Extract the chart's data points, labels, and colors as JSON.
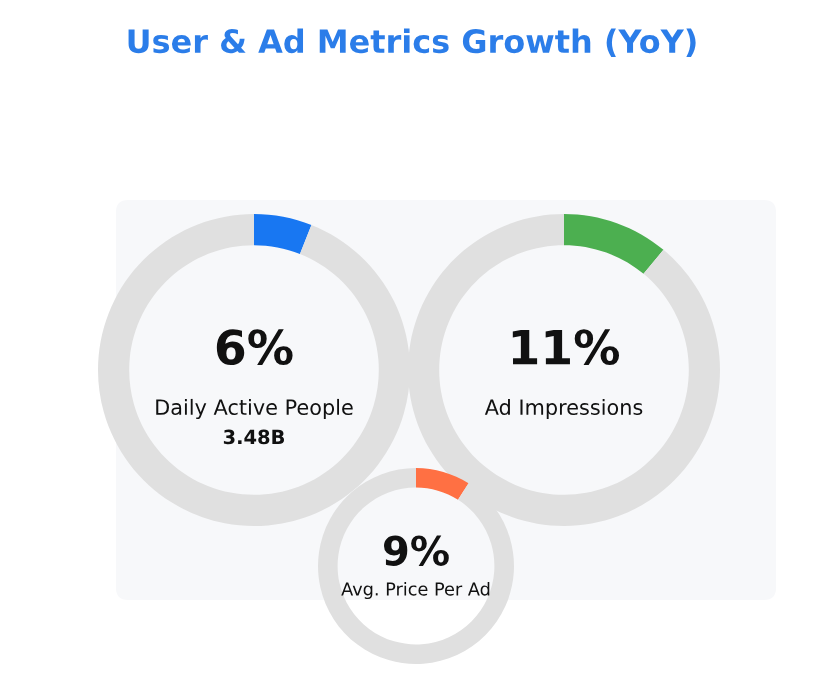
{
  "chart_data": [
    {
      "type": "donut",
      "title": "User & Ad Metrics Growth (YoY)",
      "categories": [
        null,
        null
      ],
      "values": [
        6,
        94
      ],
      "colors": [
        "#1877f2",
        "#e0e0e0"
      ],
      "value_labels": [
        "6%",
        null
      ],
      "annotations": [
        "Daily Active People",
        "3.48B"
      ]
    },
    {
      "type": "donut",
      "categories": [
        null,
        null
      ],
      "values": [
        11,
        89
      ],
      "colors": [
        "#4caf50",
        "#e0e0e0"
      ],
      "value_labels": [
        "11%",
        null
      ],
      "annotations": [
        "Ad Impressions"
      ]
    },
    {
      "type": "donut",
      "categories": [
        null,
        null
      ],
      "values": [
        9,
        91
      ],
      "colors": [
        "#ff7043",
        "#e0e0e0"
      ],
      "value_labels": [
        "9%",
        null
      ],
      "annotations": [
        "Avg. Price Per Ad"
      ]
    }
  ]
}
